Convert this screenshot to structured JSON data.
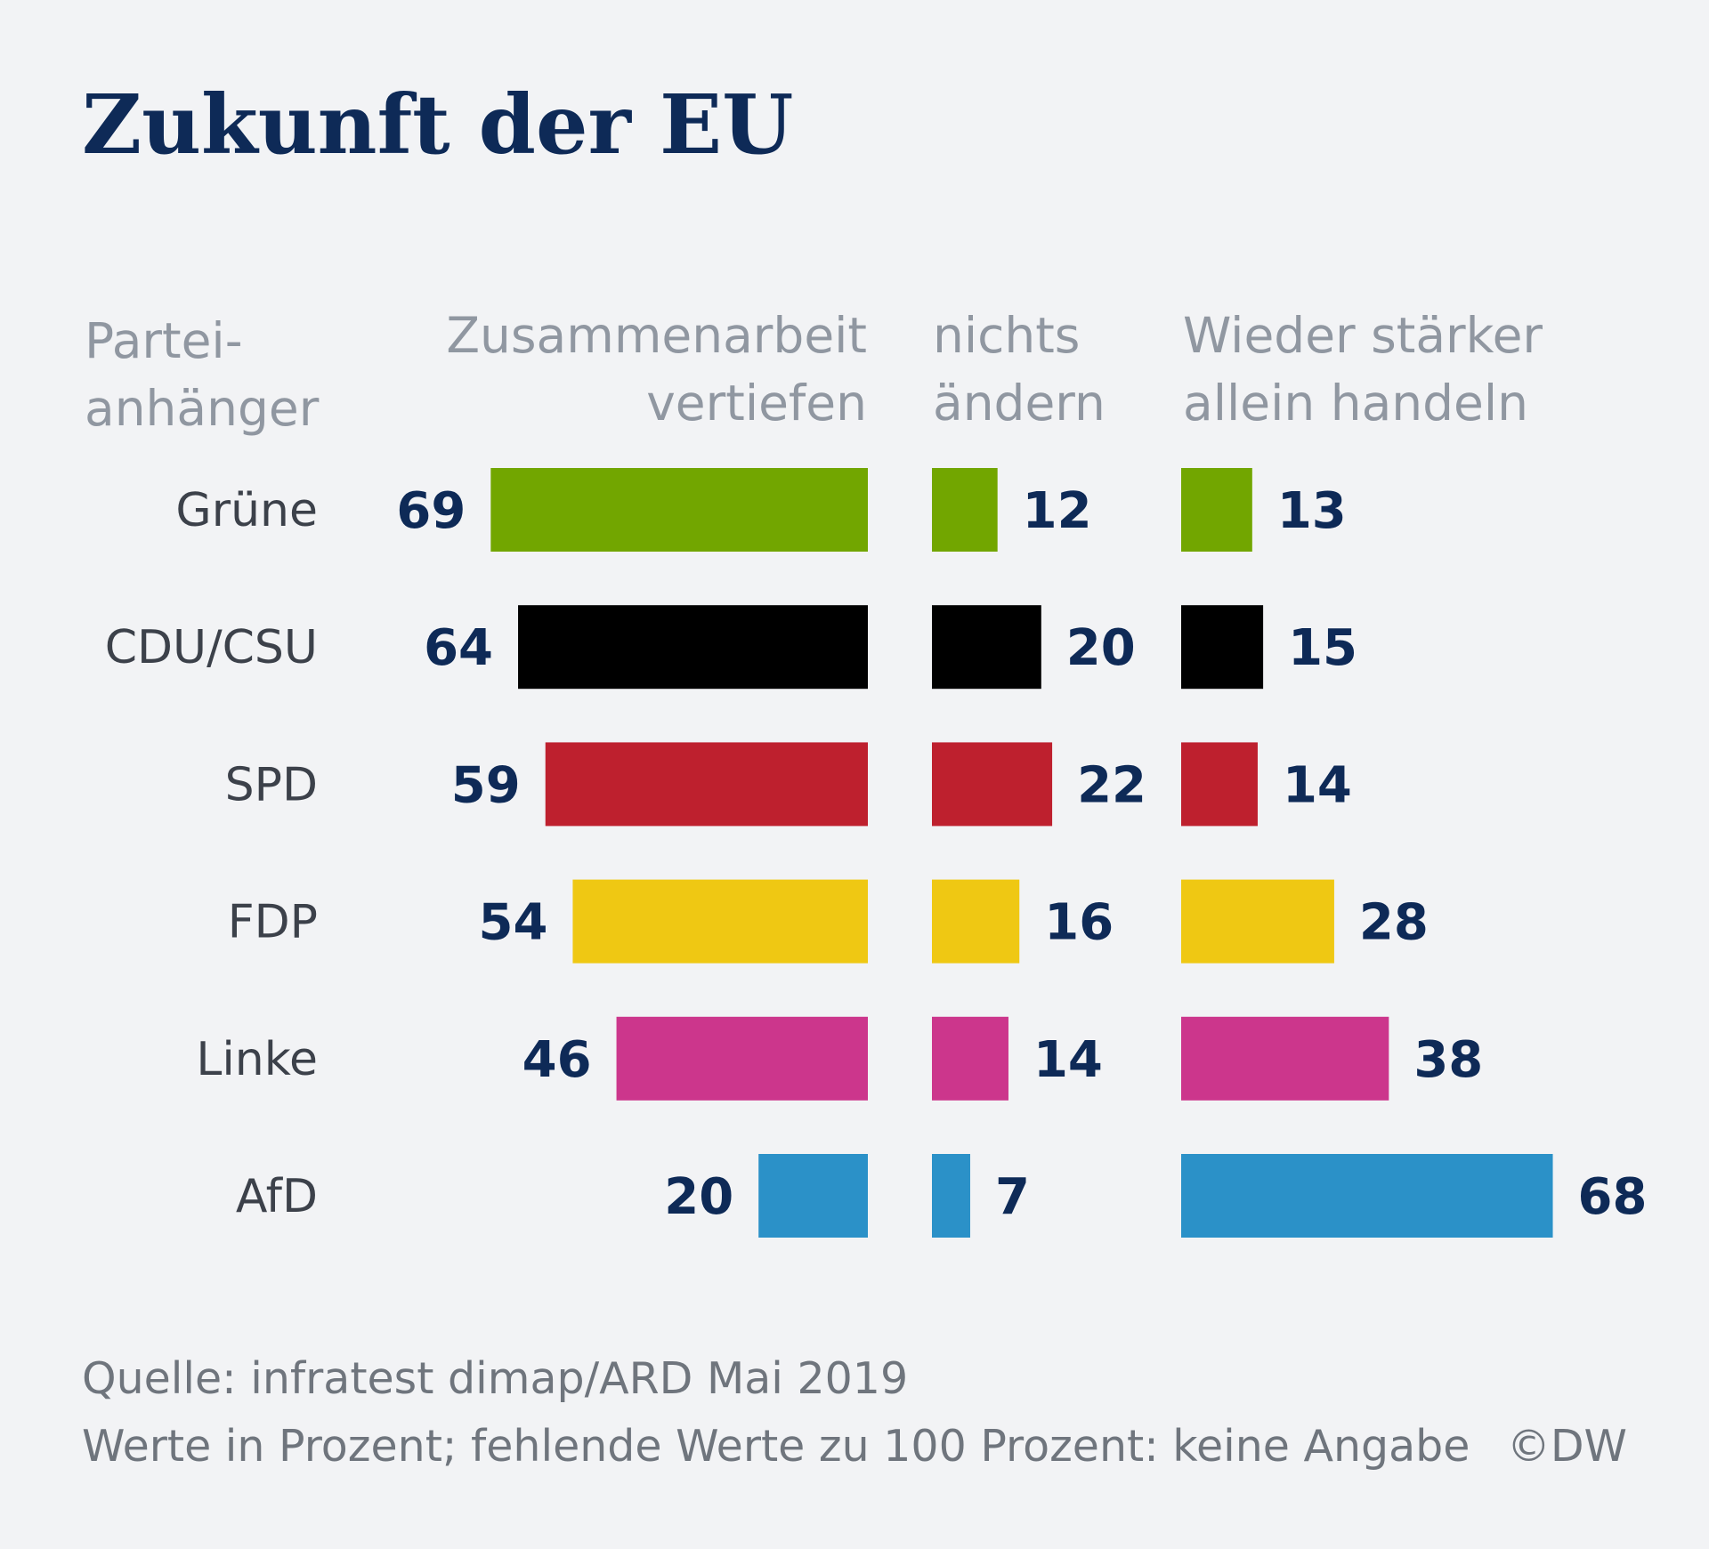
{
  "chart_data": {
    "type": "bar",
    "title": "Zukunft der EU",
    "category_header_lines": [
      "Partei-",
      "anhänger"
    ],
    "categories": [
      "Grüne",
      "CDU/CSU",
      "SPD",
      "FDP",
      "Linke",
      "AfD"
    ],
    "series": [
      {
        "name": "Zusammenarbeit vertiefen",
        "name_lines": [
          "Zusammenarbeit",
          "vertiefen"
        ],
        "values": [
          69,
          64,
          59,
          54,
          46,
          20
        ]
      },
      {
        "name": "nichts ändern",
        "name_lines": [
          "nichts",
          "ändern"
        ],
        "values": [
          12,
          20,
          22,
          16,
          14,
          7
        ]
      },
      {
        "name": "Wieder stärker allein handeln",
        "name_lines": [
          "Wieder stärker",
          "allein handeln"
        ],
        "values": [
          13,
          15,
          14,
          28,
          38,
          68
        ]
      }
    ],
    "colors": [
      "#72a600",
      "#000000",
      "#be202e",
      "#efc813",
      "#cc368c",
      "#2b91c8"
    ],
    "unit": "Prozent",
    "source": "Quelle: infratest dimap/ARD Mai 2019",
    "note": "Werte in Prozent; fehlende Werte zu 100 Prozent: keine Angabe",
    "credit": "©DW"
  }
}
